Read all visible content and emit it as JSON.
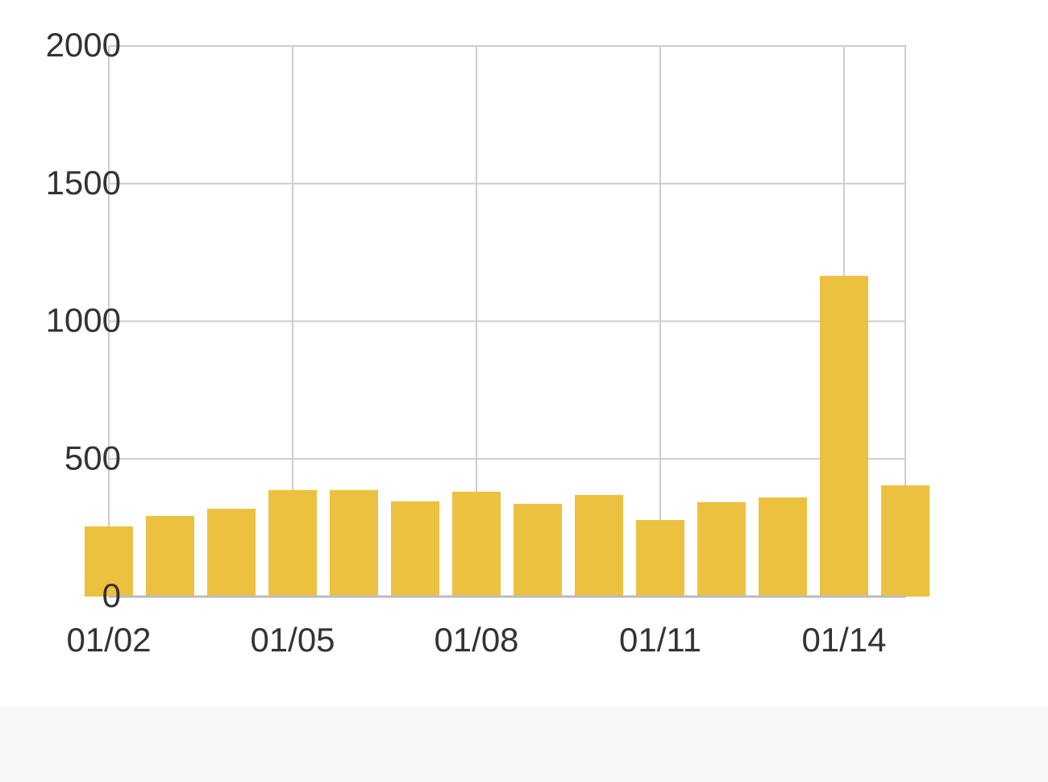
{
  "chart_data": {
    "type": "bar",
    "categories": [
      "01/02",
      null,
      null,
      "01/05",
      null,
      null,
      "01/08",
      null,
      null,
      "01/11",
      null,
      null,
      "01/14",
      null
    ],
    "values": [
      255,
      293,
      319,
      387,
      387,
      346,
      381,
      337,
      369,
      278,
      343,
      360,
      1165,
      404
    ],
    "color": "#ecc140",
    "ylim": [
      0,
      2000
    ],
    "yticks": [
      0,
      500,
      1000,
      1500,
      2000
    ],
    "grid": true
  }
}
